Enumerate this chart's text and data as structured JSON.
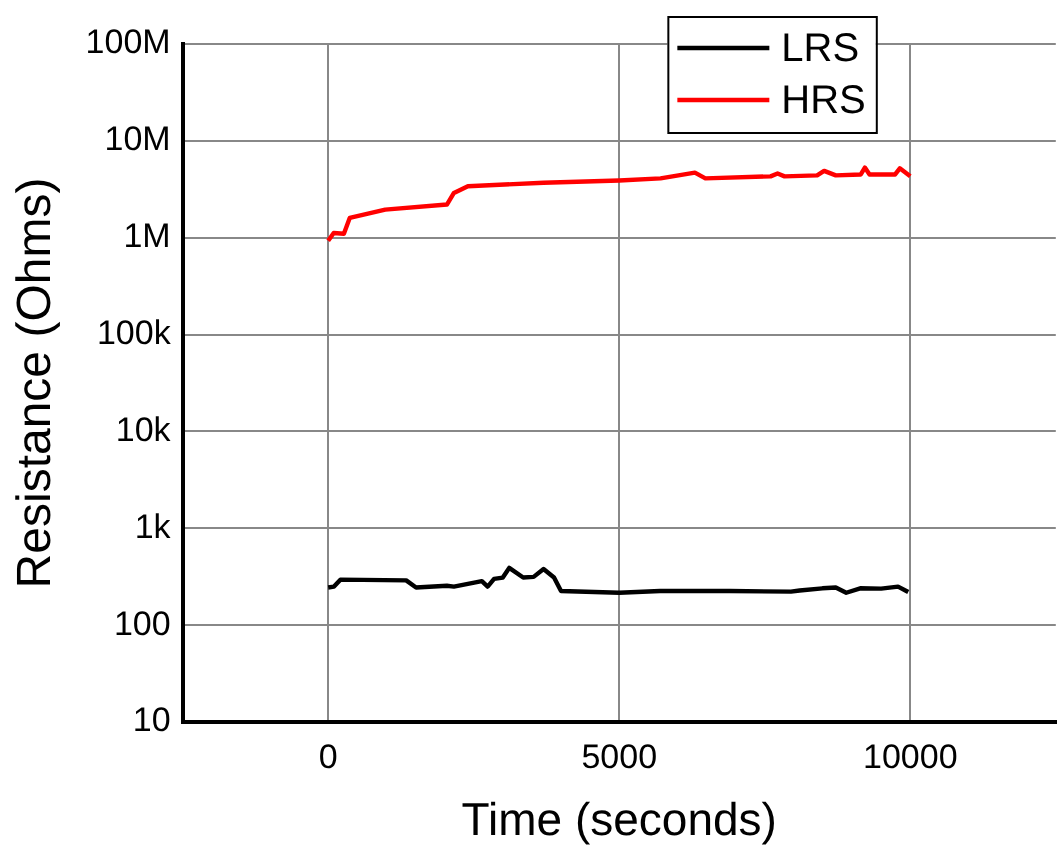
{
  "chart_data": {
    "type": "line",
    "xlabel": "Time (seconds)",
    "ylabel": "Resistance (Ohms)",
    "xlim": [
      -2500,
      12500
    ],
    "xticks": [
      0,
      5000,
      10000
    ],
    "ylim": [
      10,
      100000000
    ],
    "yticks": [
      {
        "value": 10,
        "label": "10"
      },
      {
        "value": 100,
        "label": "100"
      },
      {
        "value": 1000,
        "label": "1k"
      },
      {
        "value": 10000,
        "label": "10k"
      },
      {
        "value": 100000,
        "label": "100k"
      },
      {
        "value": 1000000,
        "label": "1M"
      },
      {
        "value": 10000000,
        "label": "10M"
      },
      {
        "value": 100000000,
        "label": "100M"
      }
    ],
    "log": "y",
    "grid": true,
    "legend": "top right",
    "marker": "none",
    "line_style": "solid",
    "series": [
      {
        "name": "LRS",
        "color": "#000000",
        "x": [
          0,
          100,
          210,
          1340,
          1510,
          2040,
          2160,
          2640,
          2740,
          2850,
          3000,
          3110,
          3350,
          3530,
          3700,
          3880,
          4000,
          5000,
          5700,
          6900,
          7950,
          8100,
          8490,
          8720,
          8900,
          9140,
          9500,
          9790,
          9965
        ],
        "values": [
          245,
          250,
          295,
          290,
          245,
          255,
          250,
          285,
          250,
          300,
          310,
          390,
          310,
          315,
          380,
          310,
          225,
          216,
          225,
          225,
          222,
          228,
          240,
          245,
          216,
          240,
          238,
          250,
          220
        ]
      },
      {
        "name": "HRS",
        "color": "#ff0000",
        "x": [
          0,
          95,
          270,
          370,
          980,
          2040,
          2160,
          2400,
          3700,
          5000,
          5710,
          6300,
          6480,
          7600,
          7720,
          7840,
          8400,
          8520,
          8720,
          9150,
          9220,
          9300,
          9740,
          9820,
          10000
        ],
        "values": [
          930000,
          1120000,
          1100000,
          1600000,
          1950000,
          2200000,
          2900000,
          3400000,
          3700000,
          3900000,
          4100000,
          4700000,
          4100000,
          4300000,
          4600000,
          4300000,
          4400000,
          4900000,
          4400000,
          4500000,
          5300000,
          4500000,
          4500000,
          5200000,
          4300000
        ]
      }
    ]
  }
}
